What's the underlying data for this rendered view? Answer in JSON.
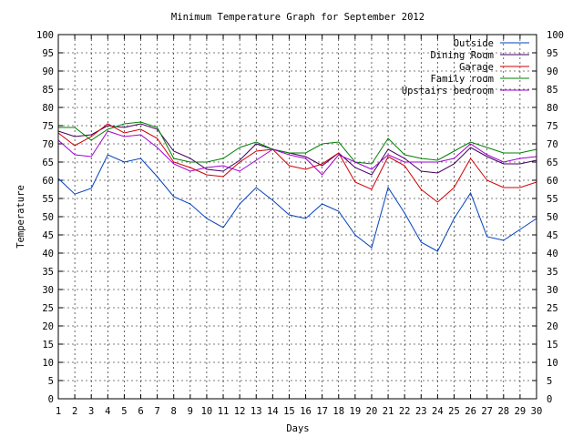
{
  "chart_data": {
    "type": "line",
    "title": "Minimum Temperature Graph for September 2012",
    "xlabel": "Days",
    "ylabel": "Temperature",
    "xlim": [
      1,
      30
    ],
    "ylim": [
      0,
      100
    ],
    "xticks": [
      1,
      2,
      3,
      4,
      5,
      6,
      7,
      8,
      9,
      10,
      11,
      12,
      13,
      14,
      15,
      16,
      17,
      18,
      19,
      20,
      21,
      22,
      23,
      24,
      25,
      26,
      27,
      28,
      29,
      30
    ],
    "yticks": [
      0,
      5,
      10,
      15,
      20,
      25,
      30,
      35,
      40,
      45,
      50,
      55,
      60,
      65,
      70,
      75,
      80,
      85,
      90,
      95,
      100
    ],
    "grid": true,
    "legend_position": "top-right",
    "x": [
      1,
      2,
      3,
      4,
      5,
      6,
      7,
      8,
      9,
      10,
      11,
      12,
      13,
      14,
      15,
      16,
      17,
      18,
      19,
      20,
      21,
      22,
      23,
      24,
      25,
      26,
      27,
      28,
      29,
      30
    ],
    "series": [
      {
        "name": "Outside",
        "color": "#0040c0",
        "values": [
          60.5,
          56.2,
          57.8,
          67.0,
          65.0,
          66.0,
          61.0,
          55.5,
          53.5,
          49.5,
          47.0,
          53.5,
          58.0,
          54.5,
          50.5,
          49.5,
          53.5,
          51.5,
          45.0,
          41.5,
          58.0,
          51.0,
          43.0,
          40.5,
          49.5,
          56.5,
          44.5,
          43.5,
          46.5,
          49.5
        ]
      },
      {
        "name": "Dining Room",
        "color": "#400060",
        "values": [
          73.5,
          72.0,
          72.5,
          75.0,
          74.5,
          75.5,
          74.0,
          68.0,
          66.0,
          63.0,
          62.5,
          65.5,
          70.0,
          68.5,
          67.5,
          66.5,
          64.0,
          67.5,
          63.5,
          61.5,
          68.5,
          66.0,
          62.5,
          62.0,
          64.5,
          69.0,
          66.5,
          64.5,
          64.5,
          65.5
        ]
      },
      {
        "name": "Garage",
        "color": "#d00000",
        "values": [
          73.0,
          69.5,
          72.0,
          75.5,
          73.0,
          74.0,
          71.5,
          65.0,
          63.5,
          61.5,
          61.0,
          65.0,
          68.0,
          68.5,
          64.0,
          63.0,
          64.5,
          67.5,
          59.5,
          57.5,
          66.5,
          64.0,
          57.5,
          54.0,
          58.0,
          66.0,
          60.0,
          58.0,
          58.0,
          59.5
        ]
      },
      {
        "name": "Family room",
        "color": "#008000",
        "values": [
          74.5,
          74.5,
          71.0,
          74.0,
          75.5,
          76.0,
          74.5,
          66.0,
          65.0,
          65.0,
          66.0,
          69.0,
          70.5,
          68.5,
          67.5,
          67.5,
          70.0,
          70.5,
          65.0,
          64.5,
          71.5,
          67.0,
          66.0,
          65.5,
          68.0,
          70.5,
          69.0,
          67.5,
          67.5,
          68.5
        ]
      },
      {
        "name": "Upstairs bedroom",
        "color": "#a000d0",
        "values": [
          71.0,
          67.0,
          66.5,
          73.5,
          72.0,
          72.5,
          69.0,
          64.5,
          62.5,
          63.5,
          64.0,
          62.5,
          65.5,
          68.5,
          67.0,
          66.0,
          61.5,
          67.0,
          65.0,
          63.0,
          67.0,
          65.0,
          65.0,
          65.0,
          66.0,
          70.0,
          67.0,
          65.0,
          66.0,
          66.5
        ]
      }
    ]
  }
}
